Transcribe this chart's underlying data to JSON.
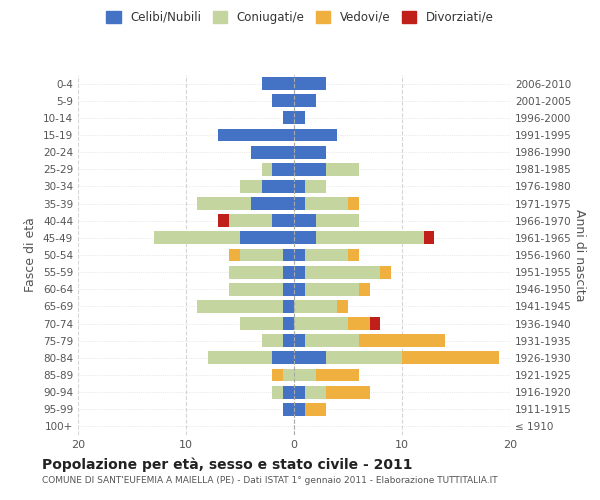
{
  "age_groups": [
    "100+",
    "95-99",
    "90-94",
    "85-89",
    "80-84",
    "75-79",
    "70-74",
    "65-69",
    "60-64",
    "55-59",
    "50-54",
    "45-49",
    "40-44",
    "35-39",
    "30-34",
    "25-29",
    "20-24",
    "15-19",
    "10-14",
    "5-9",
    "0-4"
  ],
  "birth_years": [
    "≤ 1910",
    "1911-1915",
    "1916-1920",
    "1921-1925",
    "1926-1930",
    "1931-1935",
    "1936-1940",
    "1941-1945",
    "1946-1950",
    "1951-1955",
    "1956-1960",
    "1961-1965",
    "1966-1970",
    "1971-1975",
    "1976-1980",
    "1981-1985",
    "1986-1990",
    "1991-1995",
    "1996-2000",
    "2001-2005",
    "2006-2010"
  ],
  "males": {
    "celibi": [
      0,
      1,
      1,
      0,
      2,
      1,
      1,
      1,
      1,
      1,
      1,
      5,
      2,
      4,
      3,
      2,
      4,
      7,
      1,
      2,
      3
    ],
    "coniugati": [
      0,
      0,
      1,
      1,
      6,
      2,
      4,
      8,
      5,
      5,
      4,
      8,
      4,
      5,
      2,
      1,
      0,
      0,
      0,
      0,
      0
    ],
    "vedovi": [
      0,
      0,
      0,
      1,
      0,
      0,
      0,
      0,
      0,
      0,
      1,
      0,
      0,
      0,
      0,
      0,
      0,
      0,
      0,
      0,
      0
    ],
    "divorziati": [
      0,
      0,
      0,
      0,
      0,
      0,
      0,
      0,
      0,
      0,
      0,
      0,
      1,
      0,
      0,
      0,
      0,
      0,
      0,
      0,
      0
    ]
  },
  "females": {
    "nubili": [
      0,
      1,
      1,
      0,
      3,
      1,
      0,
      0,
      1,
      1,
      1,
      2,
      2,
      1,
      1,
      3,
      3,
      4,
      1,
      2,
      3
    ],
    "coniugate": [
      0,
      0,
      2,
      2,
      7,
      5,
      5,
      4,
      5,
      7,
      4,
      10,
      4,
      4,
      2,
      3,
      0,
      0,
      0,
      0,
      0
    ],
    "vedove": [
      0,
      2,
      4,
      4,
      9,
      8,
      2,
      1,
      1,
      1,
      1,
      0,
      0,
      1,
      0,
      0,
      0,
      0,
      0,
      0,
      0
    ],
    "divorziate": [
      0,
      0,
      0,
      0,
      0,
      0,
      1,
      0,
      0,
      0,
      0,
      1,
      0,
      0,
      0,
      0,
      0,
      0,
      0,
      0,
      0
    ]
  },
  "colors": {
    "celibi_nubili": "#4472c4",
    "coniugati": "#c5d5a0",
    "vedovi": "#f0b040",
    "divorziati": "#c0201a"
  },
  "title": "Popolazione per età, sesso e stato civile - 2011",
  "subtitle": "COMUNE DI SANT'EUFEMIA A MAIELLA (PE) - Dati ISTAT 1° gennaio 2011 - Elaborazione TUTTITALIA.IT",
  "ylabel_left": "Fasce di età",
  "ylabel_right": "Anni di nascita",
  "xlim": 20,
  "legend_labels": [
    "Celibi/Nubili",
    "Coniugati/e",
    "Vedovi/e",
    "Divorziati/e"
  ],
  "background_color": "#ffffff",
  "grid_color": "#cccccc"
}
